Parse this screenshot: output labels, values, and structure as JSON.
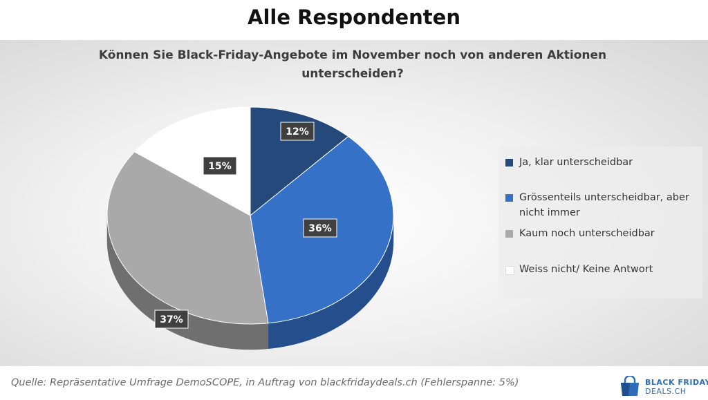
{
  "page_title": "Alle Respondenten",
  "chart_data": {
    "type": "pie",
    "title": "Können Sie Black-Friday-Angebote im November noch von anderen Aktionen unterscheiden?",
    "title_lines": [
      "Können Sie Black-Friday-Angebote im November noch von anderen Aktionen",
      "unterscheiden?"
    ],
    "categories": [
      "Ja, klar unterscheidbar",
      "Grössenteils unterscheidbar, aber nicht immer",
      "Kaum noch unterscheidbar",
      "Weiss nicht/ Keine Antwort"
    ],
    "values": [
      12,
      36,
      37,
      15
    ],
    "data_labels": [
      "12%",
      "36%",
      "37%",
      "15%"
    ],
    "colors": [
      "#24497a",
      "#3471c7",
      "#a9a9a9",
      "#ffffff"
    ],
    "legend_position": "right",
    "style": "3d-pie"
  },
  "legend": {
    "items": [
      {
        "lines": [
          "Ja, klar unterscheidbar"
        ],
        "color": "#24497a"
      },
      {
        "lines": [
          "Grössenteils unterscheidbar, aber",
          "nicht immer"
        ],
        "color": "#3471c7"
      },
      {
        "lines": [
          "Kaum noch unterscheidbar"
        ],
        "color": "#a9a9a9"
      },
      {
        "lines": [
          "Weiss nicht/ Keine Antwort"
        ],
        "color": "#ffffff"
      }
    ]
  },
  "source_text": "Quelle: Repräsentative Umfrage DemoSCOPE, in Auftrag von blackfridaydeals.ch (Fehlerspanne: 5%)",
  "logo": {
    "line1": "BLACK FRIDAY",
    "line2": "DEALS.CH",
    "icon": "shopping-bag-icon",
    "color": "#2f6db7"
  }
}
